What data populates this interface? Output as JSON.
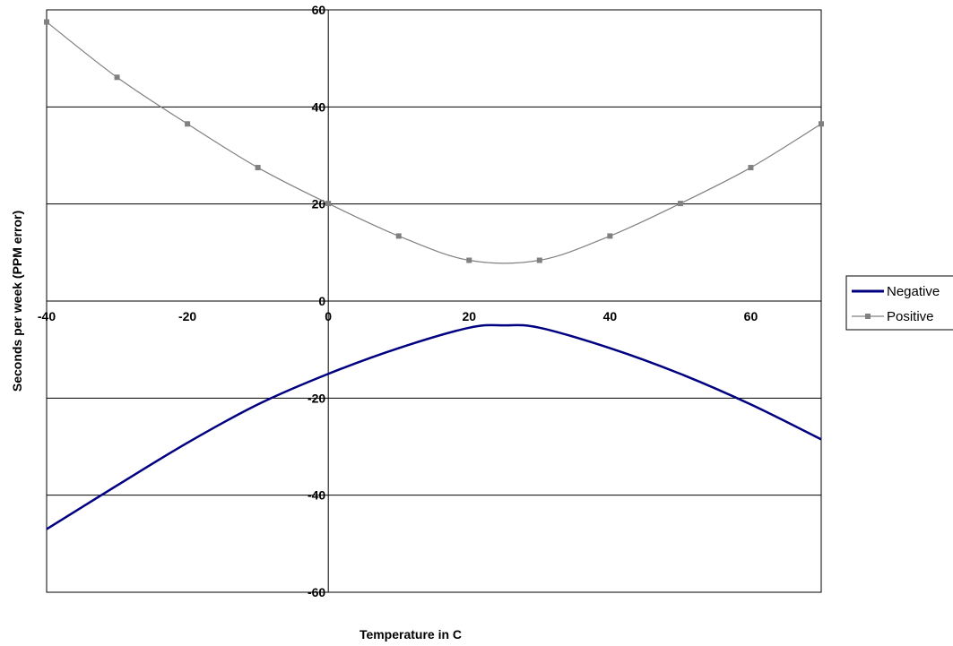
{
  "chart_data": {
    "type": "line",
    "title": "",
    "xlabel": "Temperature in C",
    "ylabel": "Seconds per week (PPM error)",
    "xlim": [
      -40,
      70
    ],
    "ylim": [
      -60,
      60
    ],
    "x_ticks": [
      -40,
      -20,
      0,
      20,
      40,
      60
    ],
    "y_ticks": [
      60,
      40,
      20,
      0,
      -20,
      -40,
      -60
    ],
    "grid": "horizontal",
    "legend_position": "right",
    "series": [
      {
        "name": "Negative",
        "color": "#000080",
        "marker": "none",
        "x": [
          -40,
          -30,
          -20,
          -10,
          0,
          10,
          20,
          25,
          30,
          40,
          50,
          60,
          70
        ],
        "y": [
          -47,
          -38,
          -29.2,
          -21.3,
          -15,
          -9.7,
          -5.5,
          -5,
          -5.5,
          -9.7,
          -15,
          -21.3,
          -28.5
        ]
      },
      {
        "name": "Positive",
        "color": "#808080",
        "marker": "square",
        "x": [
          -40,
          -30,
          -20,
          -10,
          0,
          10,
          20,
          30,
          40,
          50,
          60,
          70
        ],
        "y": [
          57.5,
          46.1,
          36.5,
          27.5,
          20.1,
          13.4,
          8.4,
          8.4,
          13.4,
          20.1,
          27.5,
          36.5
        ]
      }
    ]
  }
}
